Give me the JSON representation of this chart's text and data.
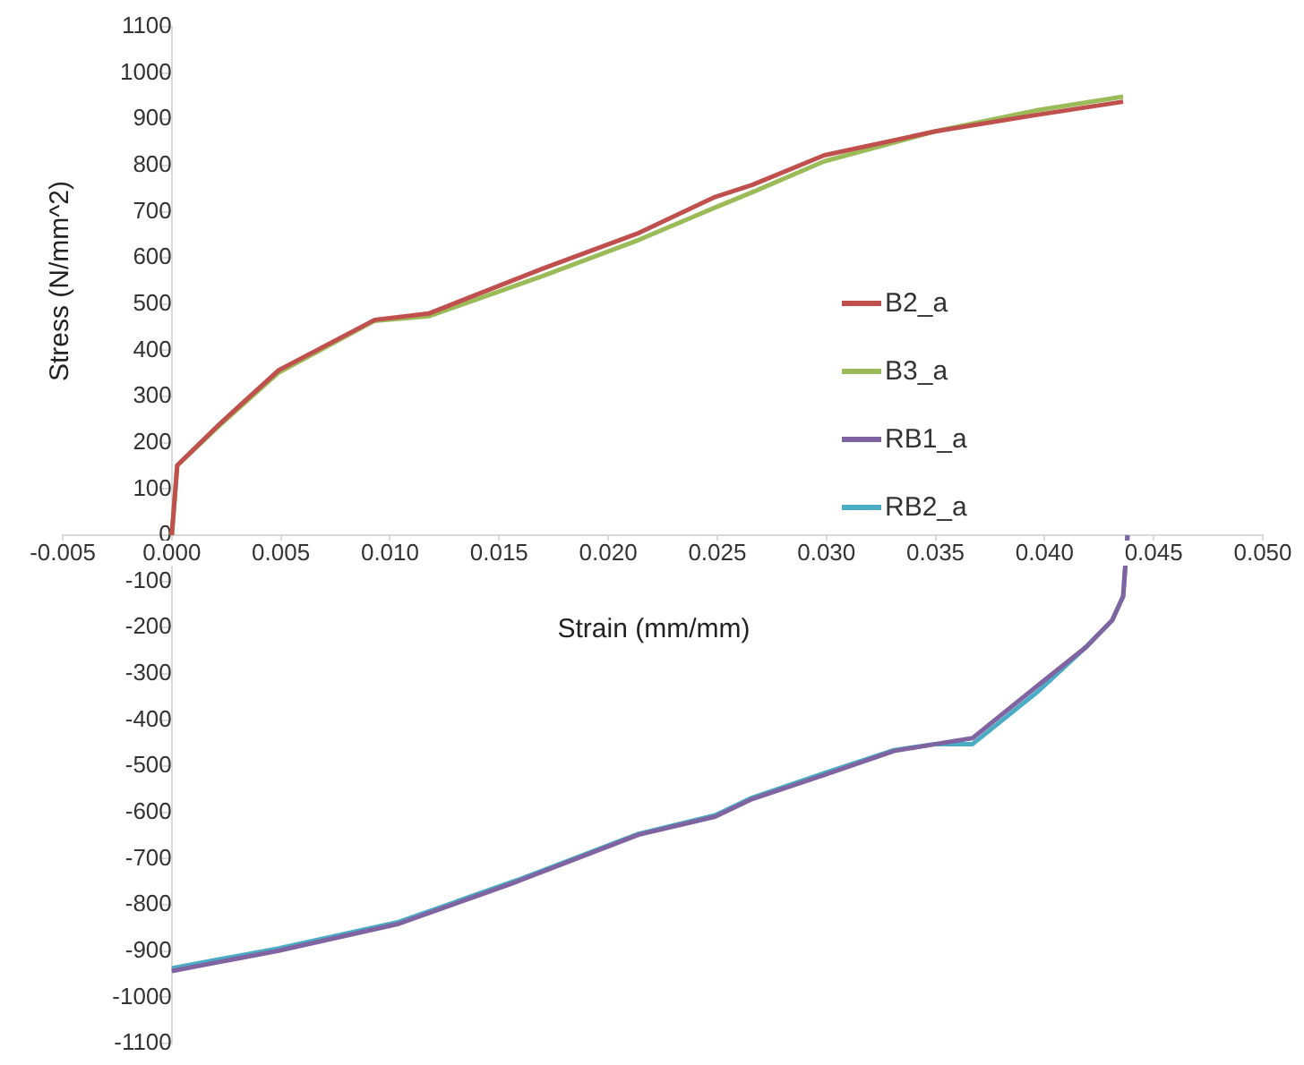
{
  "chart_data": {
    "type": "line",
    "xlabel": "Strain (mm/mm)",
    "ylabel": "Stress (N/mm^2)",
    "xlim": [
      -0.005,
      0.05
    ],
    "xticks": [
      {
        "value": -0.005,
        "label": "-0.005"
      },
      {
        "value": 0,
        "label": "0.000"
      },
      {
        "value": 0.005,
        "label": "0.005"
      },
      {
        "value": 0.01,
        "label": "0.010"
      },
      {
        "value": 0.015,
        "label": "0.015"
      },
      {
        "value": 0.02,
        "label": "0.020"
      },
      {
        "value": 0.025,
        "label": "0.025"
      },
      {
        "value": 0.03,
        "label": "0.030"
      },
      {
        "value": 0.035,
        "label": "0.035"
      },
      {
        "value": 0.04,
        "label": "0.040"
      },
      {
        "value": 0.045,
        "label": "0.045"
      },
      {
        "value": 0.05,
        "label": "0.050"
      }
    ],
    "ylim": [
      -1100,
      1100
    ],
    "yticks": [
      -1100,
      -1000,
      -900,
      -800,
      -700,
      -600,
      -500,
      -400,
      -300,
      -200,
      -100,
      0,
      100,
      200,
      300,
      400,
      500,
      600,
      700,
      800,
      900,
      1000,
      1100
    ],
    "grid": false,
    "legend": "right",
    "marker": "none",
    "line_style": "solid",
    "series": [
      {
        "name": "B2_a",
        "color": "#c0504d",
        "x": [
          0,
          0.00025,
          0.0022,
          0.0049,
          0.0093,
          0.0118,
          0.017,
          0.0214,
          0.0249,
          0.0266,
          0.0299,
          0.035,
          0.0397,
          0.0436
        ],
        "values": [
          0,
          151,
          241,
          357,
          466,
          480,
          577,
          654,
          732,
          758,
          822,
          874,
          910,
          938
        ]
      },
      {
        "name": "B3_a",
        "color": "#9bbb59",
        "x": [
          0,
          0.00025,
          0.0022,
          0.0049,
          0.0093,
          0.0118,
          0.017,
          0.0214,
          0.0249,
          0.0266,
          0.0299,
          0.035,
          0.0397,
          0.0436
        ],
        "values": [
          0,
          151,
          238,
          352,
          464,
          474,
          561,
          639,
          709,
          742,
          809,
          874,
          920,
          949
        ]
      },
      {
        "name": "RB1_a",
        "color": "#8064a2",
        "x": [
          0.0438,
          0.0436,
          0.0431,
          0.0419,
          0.0397,
          0.0367,
          0.035,
          0.0331,
          0.0299,
          0.0266,
          0.0249,
          0.0214,
          0.0158,
          0.0104,
          0.0049,
          0
        ],
        "values": [
          0,
          -132,
          -184,
          -242,
          -325,
          -439,
          -452,
          -467,
          -519,
          -571,
          -609,
          -648,
          -750,
          -841,
          -899,
          -943
        ]
      },
      {
        "name": "RB2_a",
        "color": "#4bacc6",
        "x": [
          0.0438,
          0.0436,
          0.0431,
          0.0419,
          0.0397,
          0.0367,
          0.035,
          0.0331,
          0.0299,
          0.0266,
          0.0249,
          0.0214,
          0.0158,
          0.0104,
          0.0049,
          0
        ],
        "values": [
          0,
          -132,
          -184,
          -242,
          -338,
          -452,
          -452,
          -465,
          -515,
          -568,
          -606,
          -646,
          -747,
          -837,
          -894,
          -937
        ]
      }
    ]
  }
}
